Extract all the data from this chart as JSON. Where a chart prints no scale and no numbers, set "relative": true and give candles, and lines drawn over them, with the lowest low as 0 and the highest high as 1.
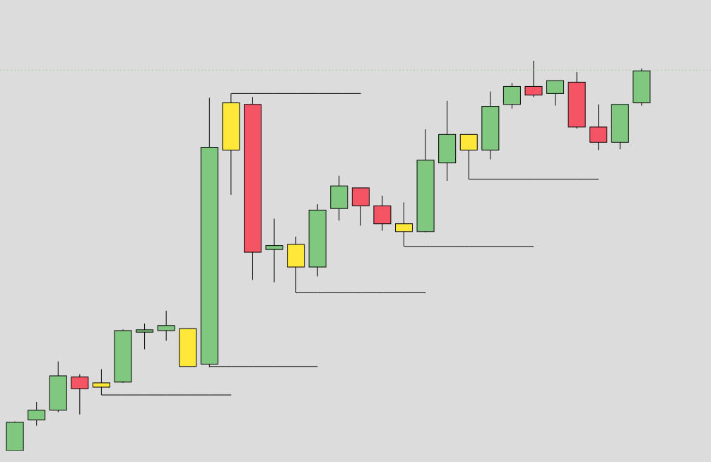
{
  "chart_data": {
    "type": "candlestick",
    "relative": true,
    "categories": [
      null,
      null,
      null,
      null,
      null,
      null,
      null,
      null,
      null,
      null,
      null,
      null,
      null,
      null,
      null,
      null,
      null,
      null,
      null,
      null,
      null,
      null,
      null,
      null,
      null,
      null,
      null,
      null,
      null,
      null
    ],
    "ohlc": [
      [
        0,
        0.075,
        0,
        0.073
      ],
      [
        0.079,
        0.125,
        0.064,
        0.104
      ],
      [
        0.104,
        0.229,
        0.099,
        0.192
      ],
      [
        0.189,
        0.196,
        0.093,
        0.159
      ],
      [
        0.163,
        0.209,
        0.143,
        0.174
      ],
      [
        0.176,
        0.311,
        0.174,
        0.308
      ],
      [
        0.304,
        0.326,
        0.26,
        0.31
      ],
      [
        0.308,
        0.359,
        0.282,
        0.321
      ],
      [
        0.313,
        0.313,
        0.216,
        0.216
      ],
      [
        0.222,
        0.905,
        0.214,
        0.778
      ],
      [
        0.771,
        0.916,
        0.656,
        0.892
      ],
      [
        0.888,
        0.907,
        0.438,
        0.509
      ],
      [
        0.516,
        0.595,
        0.432,
        0.526
      ],
      [
        0.529,
        0.549,
        0.405,
        0.471
      ],
      [
        0.471,
        0.632,
        0.447,
        0.617
      ],
      [
        0.621,
        0.705,
        0.59,
        0.679
      ],
      [
        0.674,
        0.674,
        0.577,
        0.628
      ],
      [
        0.628,
        0.654,
        0.564,
        0.582
      ],
      [
        0.582,
        0.637,
        0.524,
        0.562
      ],
      [
        0.562,
        0.824,
        0.56,
        0.745
      ],
      [
        0.738,
        0.897,
        0.692,
        0.811
      ],
      [
        0.811,
        0.811,
        0.696,
        0.771
      ],
      [
        0.771,
        0.921,
        0.747,
        0.883
      ],
      [
        0.888,
        0.943,
        0.877,
        0.934
      ],
      [
        0.934,
        1,
        0.907,
        0.912
      ],
      [
        0.916,
        0.949,
        0.885,
        0.949
      ],
      [
        0.945,
        0.971,
        0.826,
        0.83
      ],
      [
        0.83,
        0.888,
        0.771,
        0.791
      ],
      [
        0.791,
        0.888,
        0.773,
        0.888
      ],
      [
        0.892,
        0.98,
        0.885,
        0.974
      ]
    ],
    "colors": [
      "#80c880",
      "#80c880",
      "#80c880",
      "#f55464",
      "#ffe83a",
      "#80c880",
      "#80c880",
      "#80c880",
      "#ffe83a",
      "#80c880",
      "#ffe83a",
      "#f55464",
      "#80c880",
      "#ffe83a",
      "#80c880",
      "#80c880",
      "#f55464",
      "#f55464",
      "#ffe83a",
      "#80c880",
      "#80c880",
      "#ffe83a",
      "#80c880",
      "#80c880",
      "#f55464",
      "#80c880",
      "#f55464",
      "#f55464",
      "#80c880",
      "#80c880"
    ],
    "series": [
      {
        "type": "line",
        "color": "#000000",
        "values": [
          null,
          null,
          null,
          null,
          0.143,
          0.143,
          0.143,
          0.143,
          0.143,
          0.143,
          0.143,
          null,
          null,
          null,
          null,
          null,
          null,
          null,
          null,
          null,
          null,
          null,
          null,
          null,
          null,
          null,
          null,
          null,
          null,
          null
        ]
      },
      {
        "type": "line",
        "color": "#000000",
        "values": [
          null,
          null,
          null,
          null,
          null,
          null,
          null,
          null,
          null,
          0.216,
          0.216,
          0.216,
          0.216,
          0.216,
          0.216,
          null,
          null,
          null,
          null,
          null,
          null,
          null,
          null,
          null,
          null,
          null,
          null,
          null,
          null,
          null
        ]
      },
      {
        "type": "line",
        "color": "#000000",
        "values": [
          null,
          null,
          null,
          null,
          null,
          null,
          null,
          null,
          null,
          null,
          0.916,
          0.916,
          0.916,
          0.916,
          0.916,
          0.916,
          0.916,
          null,
          null,
          null,
          null,
          null,
          null,
          null,
          null,
          null,
          null,
          null,
          null,
          null
        ]
      },
      {
        "type": "line",
        "color": "#000000",
        "values": [
          null,
          null,
          null,
          null,
          null,
          null,
          null,
          null,
          null,
          null,
          null,
          null,
          null,
          0.405,
          0.405,
          0.405,
          0.405,
          0.405,
          0.405,
          0.405,
          null,
          null,
          null,
          null,
          null,
          null,
          null,
          null,
          null,
          null
        ]
      },
      {
        "type": "line",
        "color": "#000000",
        "values": [
          null,
          null,
          null,
          null,
          null,
          null,
          null,
          null,
          null,
          null,
          null,
          null,
          null,
          null,
          null,
          null,
          null,
          null,
          0.524,
          0.524,
          0.524,
          0.524,
          0.524,
          0.524,
          0.524,
          null,
          null,
          null,
          null,
          null
        ]
      },
      {
        "type": "line",
        "color": "#000000",
        "values": [
          null,
          null,
          null,
          null,
          null,
          null,
          null,
          null,
          null,
          null,
          null,
          null,
          null,
          null,
          null,
          null,
          null,
          null,
          null,
          null,
          null,
          0.696,
          0.696,
          0.696,
          0.696,
          0.696,
          0.696,
          0.696,
          null,
          null
        ]
      }
    ],
    "ref_lines": [
      {
        "axis": "y",
        "value": 0.976,
        "color": "#a8d0a8",
        "line_style": "dotted"
      }
    ]
  }
}
